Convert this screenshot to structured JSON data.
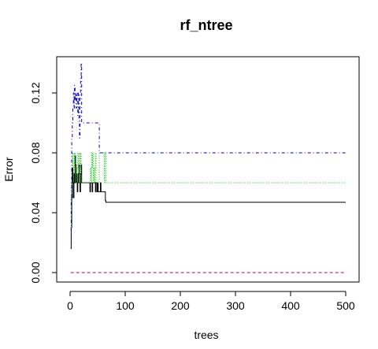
{
  "chart_data": {
    "type": "line",
    "title": "rf_ntree",
    "xlabel": "trees",
    "ylabel": "Error",
    "xlim": [
      0,
      500
    ],
    "ylim": [
      0,
      0.14
    ],
    "xticks": [
      0,
      100,
      200,
      300,
      400,
      500
    ],
    "yticks": [
      0.0,
      0.04,
      0.08,
      0.12
    ],
    "ytick_labels": [
      "0.00",
      "0.04",
      "0.08",
      "0.12"
    ],
    "grid": false,
    "legend": "none",
    "series": [
      {
        "color": "#000000",
        "dash": "solid",
        "points": [
          [
            1,
            0.016
          ],
          [
            2,
            0.03
          ],
          [
            3,
            0.05
          ],
          [
            4,
            0.07
          ],
          [
            5,
            0.06
          ],
          [
            6,
            0.05
          ],
          [
            7,
            0.066
          ],
          [
            8,
            0.06
          ],
          [
            9,
            0.078
          ],
          [
            10,
            0.072
          ],
          [
            11,
            0.06
          ],
          [
            12,
            0.066
          ],
          [
            13,
            0.054
          ],
          [
            14,
            0.06
          ],
          [
            15,
            0.066
          ],
          [
            16,
            0.072
          ],
          [
            17,
            0.06
          ],
          [
            18,
            0.054
          ],
          [
            19,
            0.066
          ],
          [
            20,
            0.072
          ],
          [
            21,
            0.06
          ],
          [
            24,
            0.06
          ],
          [
            25,
            0.06
          ],
          [
            30,
            0.06
          ],
          [
            35,
            0.06
          ],
          [
            36,
            0.054
          ],
          [
            37,
            0.06
          ],
          [
            40,
            0.054
          ],
          [
            41,
            0.06
          ],
          [
            45,
            0.06
          ],
          [
            46,
            0.054
          ],
          [
            47,
            0.06
          ],
          [
            49,
            0.054
          ],
          [
            50,
            0.06
          ],
          [
            51,
            0.054
          ],
          [
            54,
            0.054
          ],
          [
            55,
            0.06
          ],
          [
            56,
            0.054
          ],
          [
            60,
            0.054
          ],
          [
            63,
            0.054
          ],
          [
            64,
            0.048
          ],
          [
            65,
            0.047
          ],
          [
            500,
            0.047
          ]
        ]
      },
      {
        "color": "#cc0033",
        "dash": "dashed",
        "points": [
          [
            1,
            0.0
          ],
          [
            500,
            0.0
          ]
        ]
      },
      {
        "color": "#00bb00",
        "dash": "dotted",
        "points": [
          [
            1,
            0.03
          ],
          [
            2,
            0.06
          ],
          [
            3,
            0.07
          ],
          [
            4,
            0.08
          ],
          [
            5,
            0.07
          ],
          [
            6,
            0.06
          ],
          [
            7,
            0.08
          ],
          [
            8,
            0.07
          ],
          [
            9,
            0.08
          ],
          [
            10,
            0.065
          ],
          [
            11,
            0.07
          ],
          [
            12,
            0.06
          ],
          [
            13,
            0.07
          ],
          [
            14,
            0.08
          ],
          [
            15,
            0.07
          ],
          [
            16,
            0.06
          ],
          [
            17,
            0.08
          ],
          [
            18,
            0.07
          ],
          [
            19,
            0.08
          ],
          [
            20,
            0.06
          ],
          [
            22,
            0.06
          ],
          [
            30,
            0.06
          ],
          [
            36,
            0.06
          ],
          [
            37,
            0.07
          ],
          [
            38,
            0.06
          ],
          [
            39,
            0.08
          ],
          [
            40,
            0.07
          ],
          [
            41,
            0.08
          ],
          [
            42,
            0.06
          ],
          [
            43,
            0.07
          ],
          [
            44,
            0.06
          ],
          [
            45,
            0.07
          ],
          [
            46,
            0.08
          ],
          [
            47,
            0.06
          ],
          [
            52,
            0.06
          ],
          [
            53,
            0.08
          ],
          [
            54,
            0.08
          ],
          [
            61,
            0.08
          ],
          [
            62,
            0.06
          ],
          [
            63,
            0.08
          ],
          [
            64,
            0.08
          ],
          [
            65,
            0.06
          ],
          [
            500,
            0.06
          ]
        ]
      },
      {
        "color": "#0000bb",
        "dash": "dotdash",
        "points": [
          [
            1,
            0.02
          ],
          [
            2,
            0.05
          ],
          [
            3,
            0.09
          ],
          [
            4,
            0.1
          ],
          [
            5,
            0.11
          ],
          [
            6,
            0.12
          ],
          [
            7,
            0.11
          ],
          [
            8,
            0.125
          ],
          [
            9,
            0.115
          ],
          [
            10,
            0.12
          ],
          [
            11,
            0.11
          ],
          [
            12,
            0.12
          ],
          [
            13,
            0.115
          ],
          [
            14,
            0.105
          ],
          [
            15,
            0.12
          ],
          [
            16,
            0.1
          ],
          [
            17,
            0.09
          ],
          [
            18,
            0.12
          ],
          [
            19,
            0.13
          ],
          [
            20,
            0.14
          ],
          [
            21,
            0.1
          ],
          [
            25,
            0.1
          ],
          [
            30,
            0.1
          ],
          [
            40,
            0.1
          ],
          [
            50,
            0.1
          ],
          [
            52,
            0.1
          ],
          [
            53,
            0.08
          ],
          [
            54,
            0.08
          ],
          [
            500,
            0.08
          ]
        ]
      }
    ]
  }
}
